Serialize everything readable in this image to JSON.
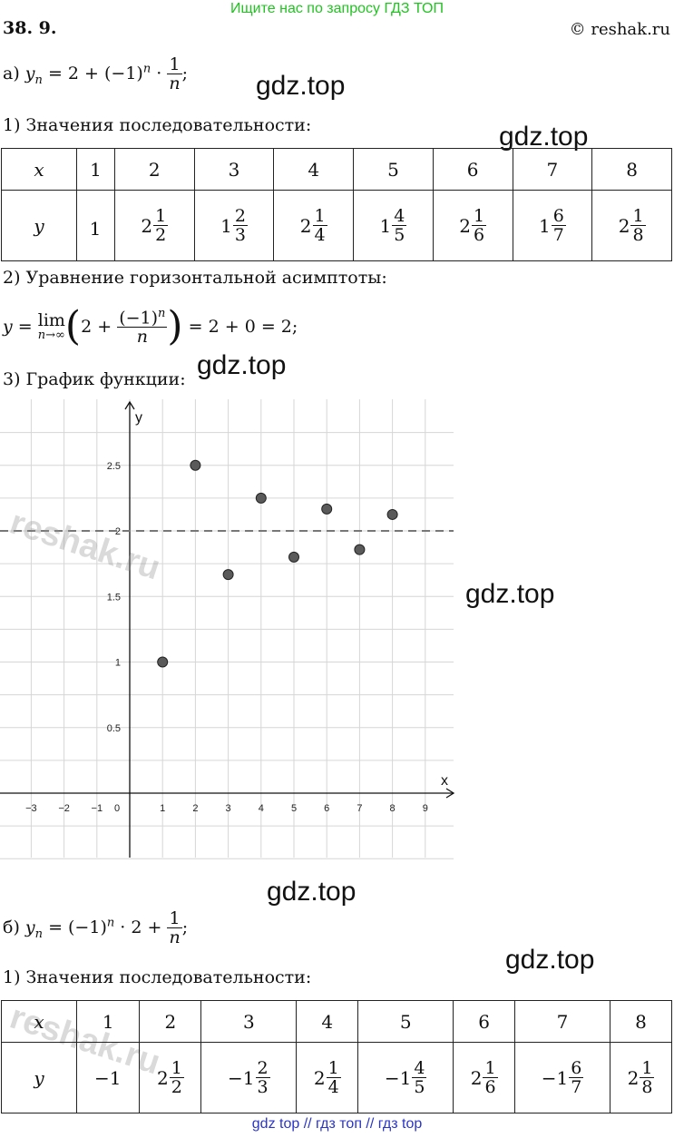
{
  "banner": "Ищите нас по запросу ГДЗ ТОП",
  "problem_number": "38. 9.",
  "copyright": "© reshak.ru",
  "watermark": "gdz.top",
  "reshak_mark": "reshak.ru",
  "part_a": {
    "label": "а)",
    "formula": {
      "y": "y",
      "n": "n",
      "rest": "= 2 + (−1)",
      "dot": "·",
      "num": "1",
      "den": "n",
      "end": ";"
    },
    "step1": "1) Значения последовательности:",
    "table": {
      "x_label": "x",
      "y_label": "y",
      "x": [
        "1",
        "2",
        "3",
        "4",
        "5",
        "6",
        "7",
        "8"
      ],
      "y": [
        {
          "sign": "",
          "whole": "1",
          "num": "",
          "den": ""
        },
        {
          "sign": "",
          "whole": "2",
          "num": "1",
          "den": "2"
        },
        {
          "sign": "",
          "whole": "1",
          "num": "2",
          "den": "3"
        },
        {
          "sign": "",
          "whole": "2",
          "num": "1",
          "den": "4"
        },
        {
          "sign": "",
          "whole": "1",
          "num": "4",
          "den": "5"
        },
        {
          "sign": "",
          "whole": "2",
          "num": "1",
          "den": "6"
        },
        {
          "sign": "",
          "whole": "1",
          "num": "6",
          "den": "7"
        },
        {
          "sign": "",
          "whole": "2",
          "num": "1",
          "den": "8"
        }
      ]
    },
    "step2": "2) Уравнение горизонтальной асимптоты:",
    "limit": {
      "y": "y",
      "eq": "=",
      "lim": "lim",
      "under": "n→∞",
      "two": "2 +",
      "num": "(−1)",
      "num_sup": "n",
      "den": "n",
      "rest": "= 2 + 0 = 2;"
    },
    "step3": "3) График функции:"
  },
  "chart_data": {
    "type": "scatter",
    "xlabel": "x",
    "ylabel": "y",
    "xlim": [
      -3.0,
      9.5
    ],
    "ylim": [
      -0.5,
      3.0
    ],
    "x_ticks": [
      "−3",
      "−2",
      "−1",
      "0",
      "1",
      "2",
      "3",
      "4",
      "5",
      "6",
      "7",
      "8",
      "9"
    ],
    "y_ticks": [
      "0.5",
      "1",
      "1.5",
      "2",
      "2.5"
    ],
    "grid": true,
    "series": [
      {
        "x": [
          1,
          2,
          3,
          4,
          5,
          6,
          7,
          8
        ],
        "y": [
          1,
          2.5,
          1.667,
          2.25,
          1.8,
          2.167,
          1.857,
          2.125
        ]
      }
    ],
    "asymptote": 2,
    "colors": {
      "point_fill": "#5a5a5a",
      "grid": "#d6d6d6",
      "axis": "#111111",
      "asymptote": "#777777"
    }
  },
  "part_b": {
    "label": "б)",
    "formula": {
      "y": "y",
      "n": "n",
      "rest": "= (−1)",
      "dot": "· 2 +",
      "num": "1",
      "den": "n",
      "end": ";"
    },
    "step1": "1) Значения последовательности:",
    "table": {
      "x_label": "x",
      "y_label": "y",
      "x": [
        "1",
        "2",
        "3",
        "4",
        "5",
        "6",
        "7",
        "8"
      ],
      "y": [
        {
          "sign": "−",
          "whole": "1",
          "num": "",
          "den": ""
        },
        {
          "sign": "",
          "whole": "2",
          "num": "1",
          "den": "2"
        },
        {
          "sign": "−",
          "whole": "1",
          "num": "2",
          "den": "3"
        },
        {
          "sign": "",
          "whole": "2",
          "num": "1",
          "den": "4"
        },
        {
          "sign": "−",
          "whole": "1",
          "num": "4",
          "den": "5"
        },
        {
          "sign": "",
          "whole": "2",
          "num": "1",
          "den": "6"
        },
        {
          "sign": "−",
          "whole": "1",
          "num": "6",
          "den": "7"
        },
        {
          "sign": "",
          "whole": "2",
          "num": "1",
          "den": "8"
        }
      ]
    }
  },
  "footer": "gdz top  //  гдз топ  //  гдз top"
}
